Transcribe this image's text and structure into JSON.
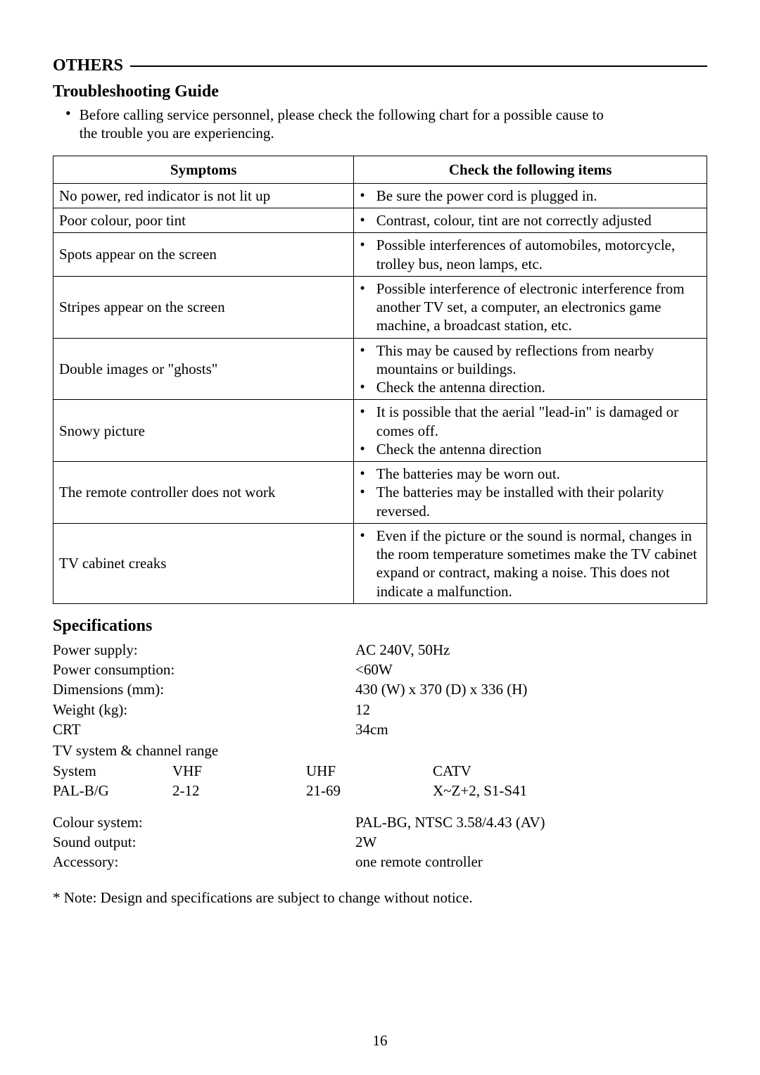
{
  "section_title": "OTHERS",
  "subheading": "Troubleshooting Guide",
  "intro": "Before calling service personnel, please check the following chart for a possible cause to the trouble you are experiencing.",
  "table": {
    "headers": [
      "Symptoms",
      "Check the following items"
    ],
    "rows": [
      {
        "symptom": "No power, red indicator is not lit up",
        "checks": [
          "Be sure the power cord is plugged in."
        ]
      },
      {
        "symptom": "Poor colour, poor tint",
        "checks": [
          "Contrast, colour, tint are not correctly adjusted"
        ]
      },
      {
        "symptom": "Spots appear on the screen",
        "checks": [
          "Possible interferences of automobiles, motorcycle, trolley bus, neon lamps, etc."
        ]
      },
      {
        "symptom": "Stripes appear on the screen",
        "checks": [
          "Possible interference of electronic interference from another TV set, a computer, an electronics game machine, a broadcast station, etc."
        ]
      },
      {
        "symptom": "Double images or \"ghosts\"",
        "checks": [
          "This may be caused by reflections from nearby mountains or buildings.",
          "Check the antenna direction."
        ]
      },
      {
        "symptom": "Snowy picture",
        "checks": [
          "It is possible that the aerial \"lead-in\" is damaged or comes off.",
          "Check the antenna direction"
        ]
      },
      {
        "symptom": "The remote controller does not work",
        "checks": [
          "The batteries may be worn out.",
          "The batteries may be installed with their polarity reversed."
        ]
      },
      {
        "symptom": "TV cabinet creaks",
        "checks": [
          "Even if the picture or the sound is normal, changes in the room temperature sometimes make the TV cabinet expand or contract, making a noise. This does not indicate a malfunction."
        ]
      }
    ]
  },
  "specs_heading": "Specifications",
  "specs": {
    "power_supply": {
      "label": "Power supply:",
      "value": "AC 240V, 50Hz"
    },
    "power_consumption": {
      "label": "Power consumption:",
      "value": "<60W"
    },
    "dimensions": {
      "label": "Dimensions (mm):",
      "value": "430 (W) x 370 (D) x 336 (H)"
    },
    "weight": {
      "label": "Weight (kg):",
      "value": "12"
    },
    "crt": {
      "label": "CRT",
      "value": "34cm"
    },
    "tv_system_label": "TV system & channel range",
    "tv_system_table": {
      "headers": [
        "System",
        "VHF",
        "UHF",
        "CATV"
      ],
      "row": [
        "PAL-B/G",
        "2-12",
        "21-69",
        "X~Z+2, S1-S41"
      ]
    },
    "colour_system": {
      "label": "Colour system:",
      "value": "PAL-BG, NTSC  3.58/4.43 (AV)"
    },
    "sound_output": {
      "label": "Sound output:",
      "value": "2W"
    },
    "accessory": {
      "label": "Accessory:",
      "value": "one remote controller"
    }
  },
  "footnote": "* Note: Design and specifications are subject to change without notice.",
  "page_number": "16",
  "colors": {
    "text": "#000000",
    "background": "#ffffff",
    "rule": "#000000",
    "border": "#000000"
  },
  "fonts": {
    "family": "Times New Roman",
    "heading_size_pt": 18,
    "body_size_pt": 16
  }
}
